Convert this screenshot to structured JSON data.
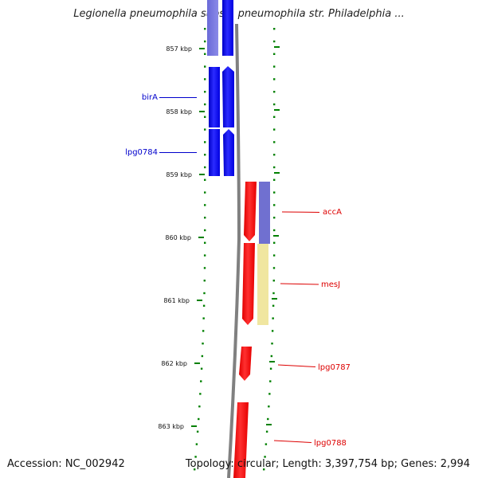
{
  "title": "Legionella pneumophila subsp. pneumophila str. Philadelphia ...",
  "footer": {
    "accession": "Accession: NC_002942",
    "topology": "Topology: circular; Length: 3,397,754 bp; Genes: 2,994"
  },
  "colors": {
    "forward_gene": "#0000ff",
    "reverse_gene": "#ff0000",
    "cog_purple": "#7070d0",
    "cog_yellow": "#f0e6a0",
    "backbone": "#808080",
    "tick": "#008000"
  },
  "ticks": [
    {
      "label": "857 kbp"
    },
    {
      "label": "858 kbp"
    },
    {
      "label": "859 kbp"
    },
    {
      "label": "860 kbp"
    },
    {
      "label": "861 kbp"
    },
    {
      "label": "862 kbp"
    },
    {
      "label": "863 kbp"
    }
  ],
  "genes": [
    {
      "name": "birA",
      "strand": "forward"
    },
    {
      "name": "lpg0784",
      "strand": "forward"
    },
    {
      "name": "accA",
      "strand": "reverse"
    },
    {
      "name": "mesJ",
      "strand": "reverse"
    },
    {
      "name": "lpg0787",
      "strand": "reverse"
    },
    {
      "name": "lpg0788",
      "strand": "reverse"
    }
  ]
}
